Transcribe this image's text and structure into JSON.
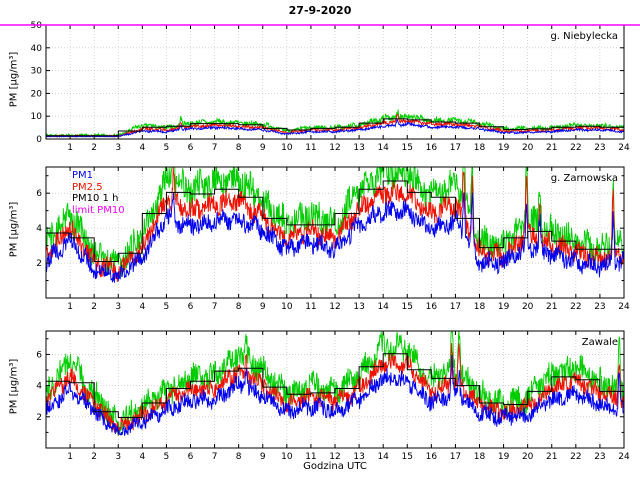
{
  "title": "27-9-2020",
  "xlabel": "Godzina UTC",
  "ylabel": "PM [µg/m³]",
  "colors": {
    "pm1": "#0000ee",
    "pm25": "#ee1100",
    "pm10": "#00cc00",
    "pm10_1h": "#000000",
    "limit": "#ff00ff",
    "grid": "#bbbbbb"
  },
  "legend": [
    {
      "label": "PM1",
      "color": "#0000ee"
    },
    {
      "label": "PM2.5",
      "color": "#ee1100"
    },
    {
      "label": "PM10 1 h",
      "color": "#000000"
    },
    {
      "label": "limit PM10",
      "color": "#ff00ff"
    }
  ],
  "chart_data": [
    {
      "type": "line",
      "station": "g. Niebylecka",
      "xlim": [
        0,
        24
      ],
      "xticks": [
        1,
        2,
        3,
        4,
        5,
        6,
        7,
        8,
        9,
        10,
        11,
        12,
        13,
        14,
        15,
        16,
        17,
        18,
        19,
        20,
        21,
        22,
        23,
        24
      ],
      "ylim": [
        0,
        50
      ],
      "yticks": [
        0,
        10,
        20,
        30,
        40,
        50
      ],
      "limit": 50,
      "hours": [
        0,
        1,
        2,
        3,
        4,
        5,
        6,
        7,
        8,
        9,
        10,
        11,
        12,
        13,
        14,
        15,
        16,
        17,
        18,
        19,
        20,
        21,
        22,
        23,
        24
      ],
      "series": [
        {
          "name": "PM10",
          "color": "#00cc00",
          "noise": 1.8,
          "values": [
            1.5,
            1.5,
            1.5,
            1.5,
            6,
            5,
            7,
            7.5,
            7,
            6.5,
            3.5,
            5,
            5,
            6,
            9,
            10,
            8,
            8,
            7,
            4.5,
            4.5,
            5,
            6,
            6,
            5
          ]
        },
        {
          "name": "PM2.5",
          "color": "#ee1100",
          "noise": 1.2,
          "values": [
            1.2,
            1.2,
            1.2,
            1.2,
            4.5,
            4.0,
            5.5,
            6.0,
            5.5,
            5.0,
            2.8,
            4.0,
            4.0,
            4.8,
            7.0,
            8.0,
            6.5,
            6.5,
            5.5,
            3.5,
            3.5,
            4.0,
            4.8,
            4.8,
            4.0
          ]
        },
        {
          "name": "PM1",
          "color": "#0000ee",
          "noise": 1.0,
          "values": [
            1.0,
            1.0,
            1.0,
            1.0,
            3.5,
            3.2,
            4.5,
            5.0,
            4.5,
            4.0,
            2.2,
            3.2,
            3.2,
            4.0,
            5.5,
            6.5,
            5.2,
            5.2,
            4.5,
            2.8,
            2.8,
            3.2,
            4.0,
            4.0,
            3.2
          ]
        }
      ],
      "spikes": [
        {
          "t": 5.6,
          "h": 3.0
        },
        {
          "t": 14.6,
          "h": 3.0
        }
      ]
    },
    {
      "type": "line",
      "station": "g. Zarnowska",
      "xlim": [
        0,
        24
      ],
      "xticks": [
        1,
        2,
        3,
        4,
        5,
        6,
        7,
        8,
        9,
        10,
        11,
        12,
        13,
        14,
        15,
        16,
        17,
        18,
        19,
        20,
        21,
        22,
        23,
        24
      ],
      "ylim": [
        0,
        7.5
      ],
      "yticks": [
        2,
        4,
        6
      ],
      "yminor": [
        1,
        3,
        5,
        7
      ],
      "limit": 50,
      "hours": [
        0,
        1,
        2,
        3,
        4,
        5,
        6,
        7,
        8,
        9,
        10,
        11,
        12,
        13,
        14,
        15,
        16,
        17,
        18,
        19,
        20,
        21,
        22,
        23,
        24
      ],
      "series": [
        {
          "name": "PM10",
          "color": "#00cc00",
          "noise": 0.8,
          "values": [
            3.2,
            4.8,
            2.6,
            1.9,
            3.6,
            6.8,
            6.2,
            6.6,
            6.8,
            5.6,
            4.2,
            4.8,
            4.2,
            6.2,
            7.2,
            7.2,
            5.8,
            6.6,
            3.2,
            3.0,
            4.4,
            3.8,
            3.2,
            2.8,
            3.2
          ]
        },
        {
          "name": "PM2.5",
          "color": "#ee1100",
          "noise": 0.55,
          "values": [
            2.6,
            4.0,
            2.1,
            1.5,
            2.9,
            5.6,
            5.0,
            5.4,
            5.6,
            4.6,
            3.4,
            3.9,
            3.4,
            5.1,
            6.0,
            6.0,
            4.8,
            5.4,
            2.6,
            2.4,
            3.6,
            3.1,
            2.6,
            2.2,
            2.6
          ]
        },
        {
          "name": "PM1",
          "color": "#0000ee",
          "noise": 0.5,
          "values": [
            2.1,
            3.3,
            1.7,
            1.2,
            2.4,
            4.6,
            4.1,
            4.4,
            4.6,
            3.8,
            2.8,
            3.2,
            2.8,
            4.2,
            5.0,
            5.0,
            3.9,
            4.4,
            2.1,
            2.0,
            2.9,
            2.5,
            2.1,
            1.8,
            2.1
          ]
        }
      ],
      "spikes": [
        {
          "t": 5.3,
          "h": 2.0
        },
        {
          "t": 17.35,
          "h": 3.5
        },
        {
          "t": 17.7,
          "h": 4.0
        },
        {
          "t": 19.95,
          "h": 3.5
        },
        {
          "t": 20.5,
          "h": 2.5
        },
        {
          "t": 23.55,
          "h": 4.0
        }
      ]
    },
    {
      "type": "line",
      "station": "Zawale",
      "xlim": [
        0,
        24
      ],
      "xticks": [
        1,
        2,
        3,
        4,
        5,
        6,
        7,
        8,
        9,
        10,
        11,
        12,
        13,
        14,
        15,
        16,
        17,
        18,
        19,
        20,
        21,
        22,
        23,
        24
      ],
      "ylim": [
        0,
        7.5
      ],
      "yticks": [
        2,
        4,
        6
      ],
      "yminor": [
        1,
        3,
        5,
        7
      ],
      "limit": 50,
      "hours": [
        0,
        1,
        2,
        3,
        4,
        5,
        6,
        7,
        8,
        9,
        10,
        11,
        12,
        13,
        14,
        15,
        16,
        17,
        18,
        19,
        20,
        21,
        22,
        23,
        24
      ],
      "series": [
        {
          "name": "PM10",
          "color": "#00cc00",
          "noise": 0.8,
          "values": [
            3.6,
            5.6,
            3.4,
            1.6,
            2.6,
            3.6,
            4.6,
            4.6,
            6.0,
            5.0,
            3.4,
            4.0,
            3.6,
            4.6,
            6.6,
            6.4,
            4.4,
            5.2,
            3.4,
            2.8,
            3.2,
            4.6,
            5.2,
            4.2,
            3.6
          ]
        },
        {
          "name": "PM2.5",
          "color": "#ee1100",
          "noise": 0.55,
          "values": [
            3.0,
            4.6,
            2.8,
            1.3,
            2.1,
            3.0,
            3.8,
            3.8,
            5.0,
            4.1,
            2.8,
            3.3,
            3.0,
            3.8,
            5.5,
            5.3,
            3.6,
            4.3,
            2.8,
            2.3,
            2.6,
            3.8,
            4.3,
            3.5,
            3.0
          ]
        },
        {
          "name": "PM1",
          "color": "#0000ee",
          "noise": 0.5,
          "values": [
            2.4,
            3.8,
            2.3,
            1.0,
            1.7,
            2.4,
            3.1,
            3.1,
            4.1,
            3.4,
            2.3,
            2.7,
            2.4,
            3.1,
            4.5,
            4.3,
            2.9,
            3.5,
            2.3,
            1.9,
            2.1,
            3.1,
            3.5,
            2.8,
            2.4
          ]
        }
      ],
      "spikes": [
        {
          "t": 8.3,
          "h": 1.5
        },
        {
          "t": 16.85,
          "h": 3.0
        },
        {
          "t": 17.15,
          "h": 2.5
        },
        {
          "t": 23.8,
          "h": 3.0
        }
      ]
    }
  ]
}
